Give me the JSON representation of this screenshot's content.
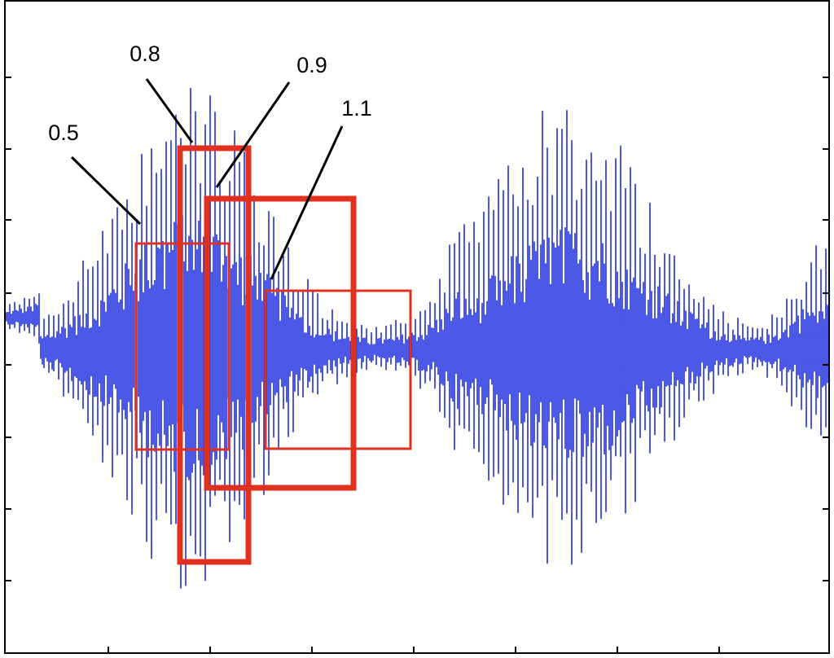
{
  "labels": [
    "0.5",
    "0.8",
    "0.9",
    "1.1"
  ]
}
